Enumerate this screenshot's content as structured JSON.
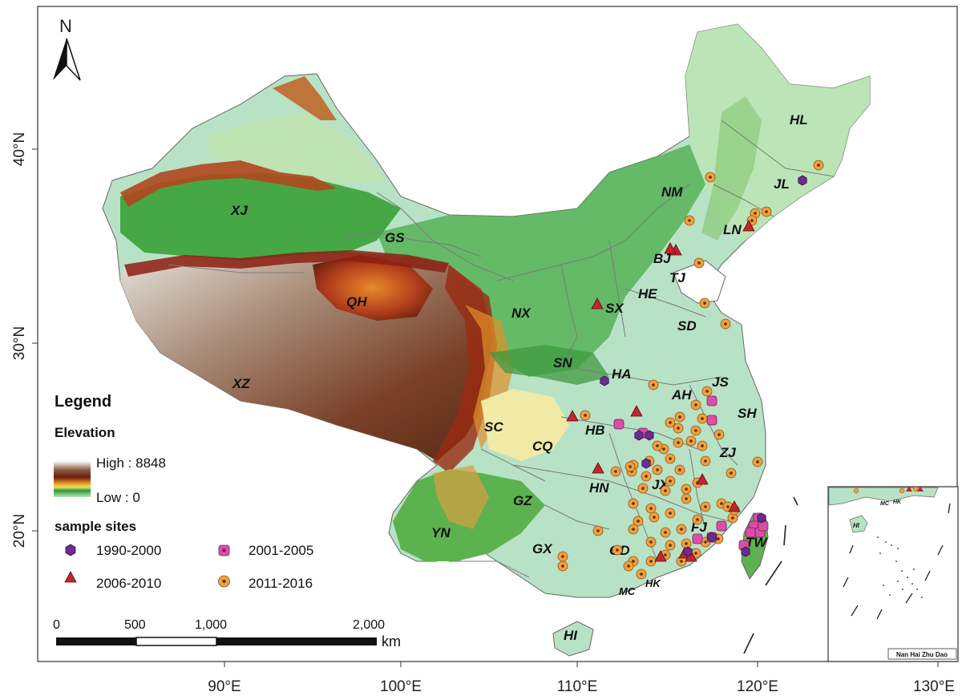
{
  "north_label": "N",
  "axes": {
    "lon_ticks": [
      "90°E",
      "100°E",
      "110°E",
      "120°E",
      "130°E"
    ],
    "lat_ticks": [
      "40°N",
      "30°N",
      "20°N"
    ]
  },
  "provinces": [
    {
      "code": "XJ"
    },
    {
      "code": "GS"
    },
    {
      "code": "QH"
    },
    {
      "code": "XZ"
    },
    {
      "code": "NX"
    },
    {
      "code": "NM"
    },
    {
      "code": "HL"
    },
    {
      "code": "JL"
    },
    {
      "code": "LN"
    },
    {
      "code": "BJ"
    },
    {
      "code": "TJ"
    },
    {
      "code": "HE"
    },
    {
      "code": "SX"
    },
    {
      "code": "SD"
    },
    {
      "code": "SN"
    },
    {
      "code": "HA"
    },
    {
      "code": "JS"
    },
    {
      "code": "AH"
    },
    {
      "code": "SH"
    },
    {
      "code": "HB"
    },
    {
      "code": "SC"
    },
    {
      "code": "CQ"
    },
    {
      "code": "ZJ"
    },
    {
      "code": "HN"
    },
    {
      "code": "JX"
    },
    {
      "code": "GZ"
    },
    {
      "code": "YN"
    },
    {
      "code": "FJ"
    },
    {
      "code": "GX"
    },
    {
      "code": "GD"
    },
    {
      "code": "TW"
    },
    {
      "code": "HK"
    },
    {
      "code": "MC"
    },
    {
      "code": "HI"
    }
  ],
  "legend": {
    "title": "Legend",
    "elevation_title": "Elevation",
    "high_label": "High : 8848",
    "low_label": "Low : 0",
    "sites_title": "sample sites",
    "periods": [
      {
        "label": "1990-2000",
        "shape": "hexagon",
        "color": "#6a2c8f"
      },
      {
        "label": "2001-2005",
        "shape": "square",
        "color": "#d84fa8"
      },
      {
        "label": "2006-2010",
        "shape": "triangle",
        "color": "#c0272d"
      },
      {
        "label": "2011-2016",
        "shape": "circle",
        "color": "#f0a040"
      }
    ]
  },
  "scale_bar": {
    "labels": [
      "0",
      "500",
      "1,000",
      "2,000"
    ],
    "unit": "km"
  },
  "inset": {
    "title": "Nan Hai Zhu Dao",
    "labels": [
      "HI",
      "MC",
      "HK"
    ]
  }
}
